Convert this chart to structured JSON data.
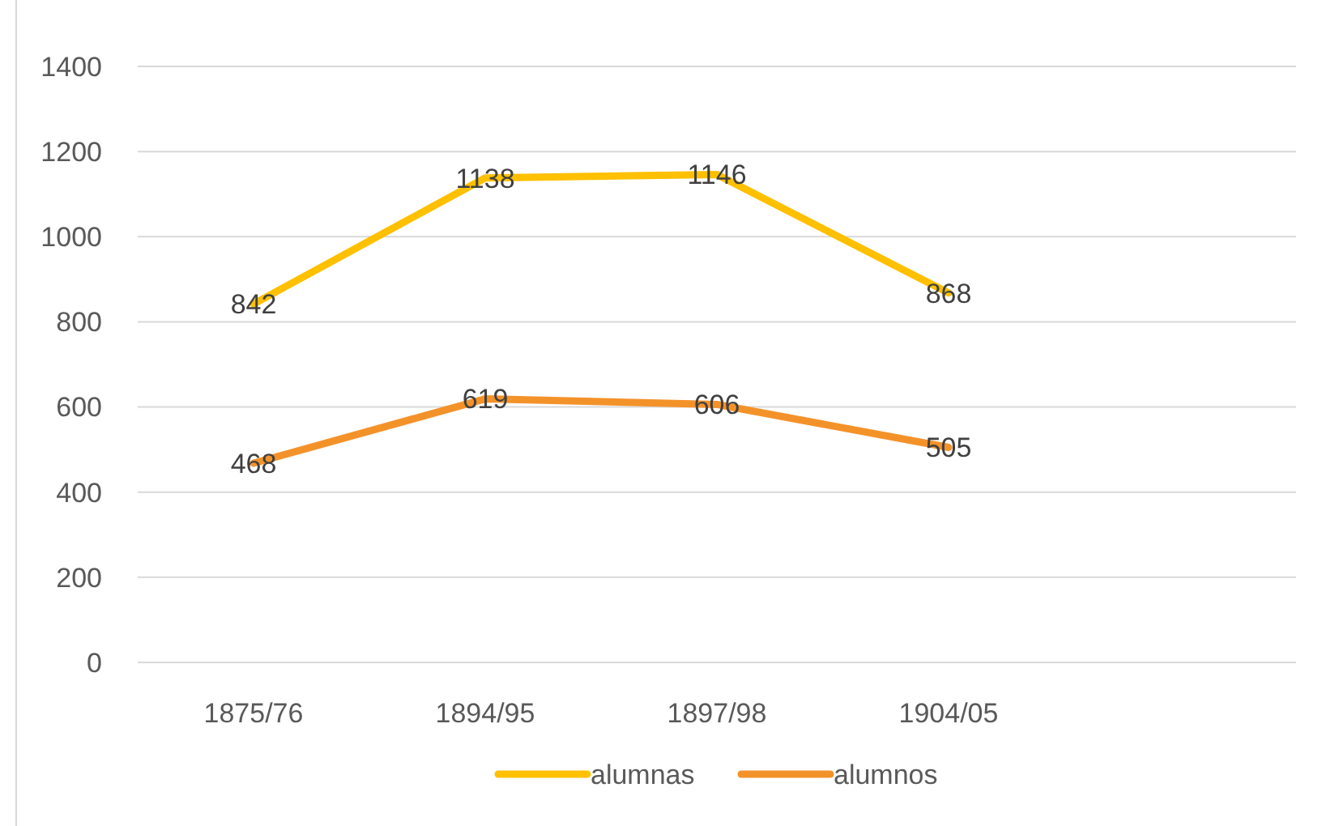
{
  "chart_data": {
    "type": "line",
    "categories": [
      "1875/76",
      "1894/95",
      "1897/98",
      "1904/05",
      null
    ],
    "series": [
      {
        "name": "alumnas",
        "color": "#ffc000",
        "values": [
          842,
          1138,
          1146,
          868,
          null
        ]
      },
      {
        "name": "alumnos",
        "color": "#f4922a",
        "values": [
          468,
          619,
          606,
          505,
          null
        ]
      }
    ],
    "ylim": [
      0,
      1400
    ],
    "yticks": [
      0,
      200,
      400,
      600,
      800,
      1000,
      1200,
      1400
    ],
    "grid": "y",
    "data_labels": true,
    "legend": "bottom",
    "marker": "none",
    "line_style": "solid"
  }
}
